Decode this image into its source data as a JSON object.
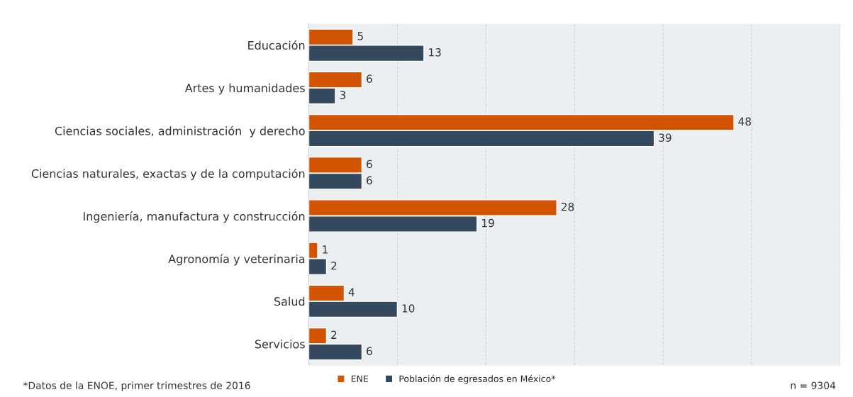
{
  "chart_data": {
    "type": "bar",
    "orientation": "horizontal",
    "categories": [
      "Educación",
      "Artes y humanidades",
      "Ciencias sociales, administración  y derecho",
      "Ciencias naturales, exactas y de la computación",
      "Ingeniería, manufactura y construcción",
      "Agronomía y veterinaria",
      "Salud",
      "Servicios"
    ],
    "series": [
      {
        "name": "ENE",
        "color": "#d35400",
        "values": [
          5,
          6,
          48,
          6,
          28,
          1,
          4,
          2
        ]
      },
      {
        "name": "Población de egresados en México*",
        "color": "#34495e",
        "values": [
          13,
          3,
          39,
          6,
          19,
          2,
          10,
          6
        ]
      }
    ],
    "xlim": [
      0,
      60
    ],
    "xticks": [
      {
        "value": 0,
        "label": null
      },
      {
        "value": 10,
        "label": null
      },
      {
        "value": 20,
        "label": null
      },
      {
        "value": 30,
        "label": null
      },
      {
        "value": 40,
        "label": null
      },
      {
        "value": 50,
        "label": null
      },
      {
        "value": 60,
        "label": null
      }
    ],
    "grid": "x",
    "data_labels": true,
    "legend": "bottom",
    "annotations": [
      "*Datos de la ENOE, primer trimestres de 2016",
      "n = 9304"
    ]
  }
}
